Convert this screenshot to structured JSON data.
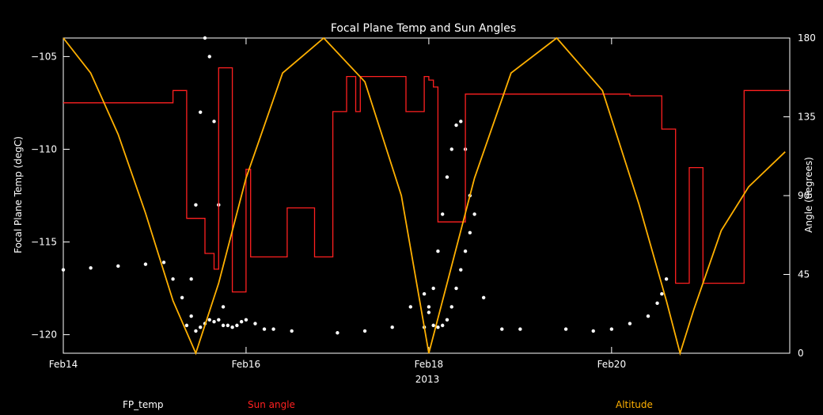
{
  "chart_data": {
    "type": "line",
    "title": "Focal Plane Temp and Sun Angles",
    "xlabel": "2013",
    "ylabel_left": "Focal Plane Temp (degC)",
    "ylabel_right": "Angle (degrees)",
    "xlim": [
      14,
      21.95
    ],
    "ylim_left": [
      -121,
      -104
    ],
    "ylim_right": [
      0,
      180
    ],
    "x_ticks": [
      {
        "value": 14,
        "label": "Feb14"
      },
      {
        "value": 16,
        "label": "Feb16"
      },
      {
        "value": 18,
        "label": "Feb18"
      },
      {
        "value": 20,
        "label": "Feb20"
      }
    ],
    "y_ticks_left": [
      {
        "value": -105,
        "label": "−105"
      },
      {
        "value": -110,
        "label": "−110"
      },
      {
        "value": -115,
        "label": "−115"
      },
      {
        "value": -120,
        "label": "−120"
      }
    ],
    "y_ticks_right": [
      {
        "value": 0,
        "label": "0"
      },
      {
        "value": 45,
        "label": "45"
      },
      {
        "value": 90,
        "label": "90"
      },
      {
        "value": 135,
        "label": "135"
      },
      {
        "value": 180,
        "label": "180"
      }
    ],
    "legend": [
      "FP_temp",
      "Sun angle",
      "Altitude"
    ],
    "colors": {
      "background": "#000000",
      "axes": "#ffffff",
      "fp_temp": "#ffffff",
      "sun_angle": "#ff2020",
      "altitude": "#ffb000"
    },
    "series": [
      {
        "name": "FP_temp",
        "axis": "left",
        "style": "markers",
        "x": [
          14.0,
          14.3,
          14.6,
          14.9,
          15.1,
          15.2,
          15.3,
          15.4,
          15.45,
          15.5,
          15.55,
          15.6,
          15.65,
          15.7,
          15.75,
          15.8,
          15.85,
          15.9,
          15.95,
          16.0,
          16.1,
          16.2,
          16.3,
          16.5,
          17.0,
          17.3,
          17.6,
          17.8,
          17.95,
          18.0,
          18.05,
          18.1,
          18.15,
          18.2,
          18.25,
          18.3,
          18.35,
          18.4,
          18.45,
          18.5,
          18.6,
          18.8,
          19.0,
          19.5,
          19.8,
          20.0,
          20.2,
          20.4,
          20.5,
          20.55,
          20.6
        ],
        "y": [
          -116.5,
          -116.4,
          -116.3,
          -116.2,
          -116.1,
          -117.0,
          -118.0,
          -119.0,
          -119.8,
          -119.6,
          -119.4,
          -119.2,
          -119.3,
          -119.2,
          -119.5,
          -119.5,
          -119.6,
          -119.5,
          -119.3,
          -119.2,
          -119.4,
          -119.7,
          -119.7,
          -119.8,
          -119.9,
          -119.8,
          -119.6,
          -118.5,
          -117.8,
          -118.5,
          -119.5,
          -119.6,
          -119.5,
          -119.2,
          -118.5,
          -117.5,
          -116.5,
          -115.5,
          -114.5,
          -113.5,
          -118.0,
          -119.7,
          -119.7,
          -119.7,
          -119.8,
          -119.7,
          -119.4,
          -119.0,
          -118.3,
          -117.8,
          -117.0
        ]
      },
      {
        "name": "FP_temp_spike1",
        "axis": "left",
        "style": "markers",
        "x": [
          15.35,
          15.4,
          15.45,
          15.5,
          15.55,
          15.6,
          15.65,
          15.7,
          15.75
        ],
        "y": [
          -119.5,
          -117.0,
          -113.0,
          -108.0,
          -104.0,
          -105.0,
          -108.5,
          -113.0,
          -118.5
        ]
      },
      {
        "name": "FP_temp_spike2",
        "axis": "left",
        "style": "markers",
        "x": [
          17.95,
          18.0,
          18.05,
          18.1,
          18.15,
          18.2,
          18.25,
          18.3,
          18.35,
          18.4,
          18.45
        ],
        "y": [
          -119.6,
          -118.8,
          -117.5,
          -115.5,
          -113.5,
          -111.5,
          -110.0,
          -108.7,
          -108.5,
          -110.0,
          -112.5
        ]
      },
      {
        "name": "Sun angle",
        "axis": "right",
        "style": "step",
        "x": [
          14.0,
          15.2,
          15.2,
          15.35,
          15.35,
          15.55,
          15.55,
          15.65,
          15.65,
          15.7,
          15.7,
          15.85,
          15.85,
          16.0,
          16.0,
          16.05,
          16.05,
          16.45,
          16.45,
          16.75,
          16.75,
          16.95,
          16.95,
          17.1,
          17.1,
          17.2,
          17.2,
          17.25,
          17.25,
          17.75,
          17.75,
          17.95,
          17.95,
          18.0,
          18.0,
          18.05,
          18.05,
          18.1,
          18.1,
          18.2,
          18.2,
          18.4,
          18.4,
          20.2,
          20.2,
          20.55,
          20.55,
          20.7,
          20.7,
          20.85,
          20.85,
          21.0,
          21.0,
          21.45,
          21.45,
          21.95
        ],
        "y": [
          143,
          143,
          150,
          150,
          77,
          77,
          57,
          57,
          48,
          48,
          163,
          163,
          35,
          35,
          105,
          105,
          55,
          55,
          83,
          83,
          55,
          55,
          138,
          138,
          158,
          158,
          138,
          138,
          158,
          158,
          138,
          138,
          158,
          158,
          156,
          156,
          152,
          152,
          75,
          75,
          75,
          75,
          148,
          148,
          147,
          147,
          128,
          128,
          40,
          40,
          106,
          106,
          40,
          40,
          150,
          150
        ]
      },
      {
        "name": "Altitude",
        "axis": "right",
        "style": "line",
        "x": [
          14.0,
          14.3,
          14.6,
          14.9,
          15.2,
          15.45,
          15.7,
          16.0,
          16.4,
          16.85,
          17.3,
          17.7,
          18.0,
          18.2,
          18.5,
          18.9,
          19.4,
          19.9,
          20.3,
          20.6,
          20.75,
          20.9,
          21.2,
          21.5,
          21.9
        ],
        "y": [
          180,
          160,
          125,
          80,
          30,
          0,
          40,
          100,
          160,
          180,
          155,
          90,
          0,
          40,
          100,
          160,
          180,
          150,
          85,
          30,
          0,
          25,
          70,
          95,
          115
        ]
      }
    ]
  }
}
